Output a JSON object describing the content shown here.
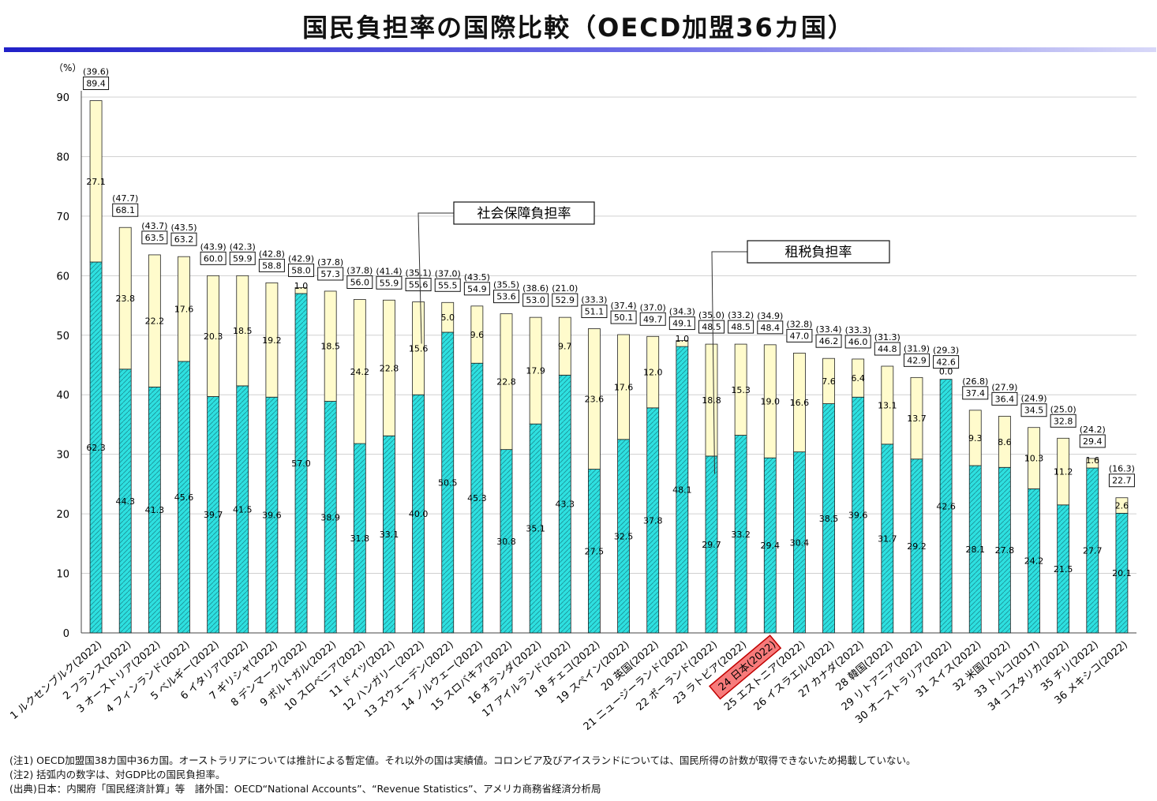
{
  "title": "国民負担率の国際比較（OECD加盟36カ国）",
  "chart_data": {
    "type": "bar",
    "stacked": true,
    "yunit": "（%）",
    "ylim": [
      0,
      90
    ],
    "yticks": [
      0,
      10,
      20,
      30,
      40,
      50,
      60,
      70,
      80,
      90
    ],
    "grid": true,
    "colors": {
      "tax": "#2ee0e0",
      "social": "#fffbcc",
      "highlight_fill": "#f77b7b",
      "highlight_border": "#c00000"
    },
    "highlight_index": 23,
    "callouts": [
      {
        "label": "社会保障負担率",
        "target_index": 11
      },
      {
        "label": "租税負担率",
        "target_index": 21
      }
    ],
    "categories": [
      "1 ルクセンブルク(2022)",
      "2 フランス(2022)",
      "3 オーストリア(2022)",
      "4 フィンランド(2022)",
      "5 ベルギー(2022)",
      "6 イタリア(2022)",
      "7 ギリシャ(2022)",
      "8 デンマーク(2022)",
      "9 ポルトガル(2022)",
      "10 スロベニア(2022)",
      "11 ドイツ(2022)",
      "12 ハンガリー(2022)",
      "13 スウェーデン(2022)",
      "14 ノルウェー(2022)",
      "15 スロバキア(2022)",
      "16 オランダ(2022)",
      "17 アイルランド(2022)",
      "18 チェコ(2022)",
      "19 スペイン(2022)",
      "20 英国(2022)",
      "21 ニュージーランド(2022)",
      "22 ポーランド(2022)",
      "23 ラトビア(2022)",
      "24 日本(2022)",
      "25 エストニア(2022)",
      "26 イスラエル(2022)",
      "27 カナダ(2022)",
      "28 韓国(2022)",
      "29 リトアニア(2022)",
      "30 オーストラリア(2022)",
      "31 スイス(2022)",
      "32 米国(2022)",
      "33 トルコ(2017)",
      "34 コスタリカ(2022)",
      "35 チリ(2022)",
      "36 メキシコ(2022)"
    ],
    "series": [
      {
        "name": "租税負担率",
        "values": [
          62.3,
          44.3,
          41.3,
          45.6,
          39.7,
          41.5,
          39.6,
          57.0,
          38.9,
          31.8,
          33.1,
          40.0,
          50.5,
          45.3,
          30.8,
          35.1,
          43.3,
          27.5,
          32.5,
          37.8,
          48.1,
          29.7,
          33.2,
          29.4,
          30.4,
          38.5,
          39.6,
          31.7,
          29.2,
          42.6,
          28.1,
          27.8,
          24.2,
          21.5,
          27.7,
          20.1
        ]
      },
      {
        "name": "社会保障負担率",
        "values": [
          27.1,
          23.8,
          22.2,
          17.6,
          20.3,
          18.5,
          19.2,
          1.0,
          18.5,
          24.2,
          22.8,
          15.6,
          5.0,
          9.6,
          22.8,
          17.9,
          9.7,
          23.6,
          17.6,
          12.0,
          1.0,
          18.8,
          15.3,
          19.0,
          16.6,
          7.6,
          6.4,
          13.1,
          13.7,
          0.0,
          9.3,
          8.6,
          10.3,
          11.2,
          1.6,
          2.6
        ]
      }
    ],
    "totals": [
      89.4,
      68.1,
      63.5,
      63.2,
      60.0,
      59.9,
      58.8,
      58.0,
      57.3,
      56.0,
      55.9,
      55.6,
      55.5,
      54.9,
      53.6,
      53.0,
      52.9,
      51.1,
      50.1,
      49.7,
      49.1,
      48.5,
      48.5,
      48.4,
      47.0,
      46.2,
      46.0,
      44.8,
      42.9,
      42.6,
      37.4,
      36.4,
      34.5,
      32.8,
      29.4,
      22.7
    ],
    "gdp_ratio": [
      "(39.6)",
      "(47.7)",
      "(43.7)",
      "(43.5)",
      "(43.9)",
      "(42.3)",
      "(42.8)",
      "(42.9)",
      "(37.8)",
      "(37.8)",
      "(41.4)",
      "(35.1)",
      "(37.0)",
      "(43.5)",
      "(35.5)",
      "(38.6)",
      "(21.0)",
      "(33.3)",
      "(37.4)",
      "(37.0)",
      "(34.3)",
      "(35.0)",
      "(33.2)",
      "(34.9)",
      "(32.8)",
      "(33.4)",
      "(33.3)",
      "(31.3)",
      "(31.9)",
      "(29.3)",
      "(26.8)",
      "(27.9)",
      "(24.9)",
      "(25.0)",
      "(24.2)",
      "(16.3)"
    ]
  },
  "notes": [
    "(注1) OECD加盟国38カ国中36カ国。オーストラリアについては推計による暫定値。それ以外の国は実績値。コロンビア及びアイスランドについては、国民所得の計数が取得できないため掲載していない。",
    "(注2) 括弧内の数字は、対GDP比の国民負担率。",
    "(出典)日本：内閣府「国民経済計算」等　諸外国：OECD“National Accounts”、“Revenue Statistics”、アメリカ商務省経済分析局"
  ]
}
